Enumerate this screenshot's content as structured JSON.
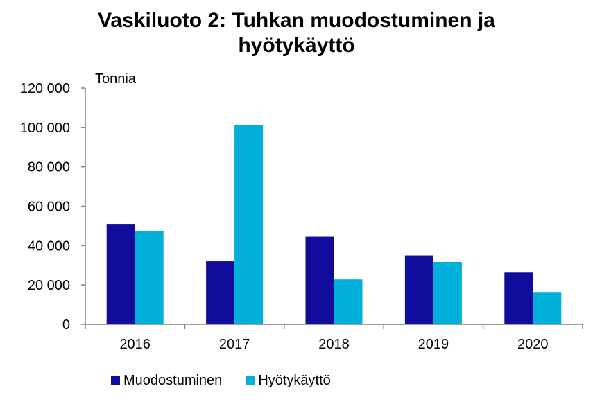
{
  "chart_data": {
    "type": "bar",
    "title_line1": "Vaskiluoto 2: Tuhkan muodostuminen ja",
    "title_line2": "hyötykäyttö",
    "unit_label": "Tonnia",
    "categories": [
      "2016",
      "2017",
      "2018",
      "2019",
      "2020"
    ],
    "series": [
      {
        "name": "Muodostuminen",
        "color": "#120C9C",
        "values": [
          51000,
          32000,
          44500,
          35000,
          26300
        ]
      },
      {
        "name": "Hyötykäyttö",
        "color": "#00B0DA",
        "values": [
          47500,
          101000,
          22800,
          31700,
          16100
        ]
      }
    ],
    "ylim": [
      0,
      120000
    ],
    "yticks": [
      0,
      20000,
      40000,
      60000,
      80000,
      100000,
      120000
    ],
    "ytick_labels": [
      "0",
      "20 000",
      "40 000",
      "60 000",
      "80 000",
      "100 000",
      "120 000"
    ],
    "grid": false,
    "legend_position": "bottom"
  }
}
